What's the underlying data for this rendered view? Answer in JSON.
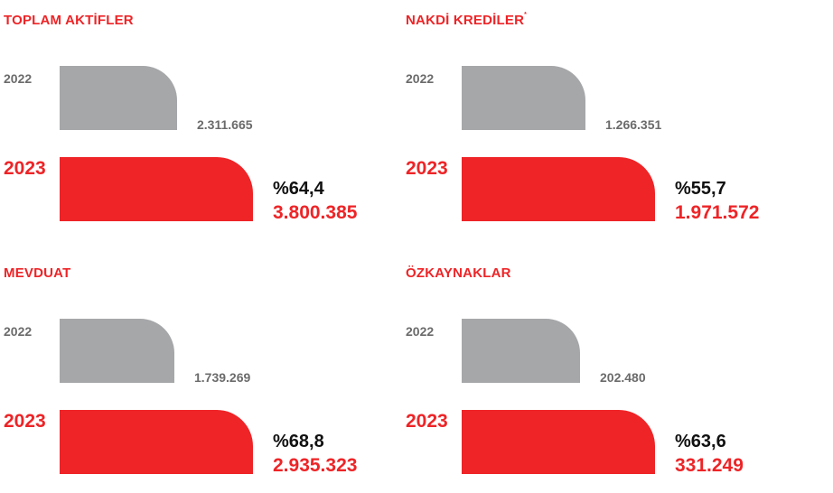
{
  "colors": {
    "accent": "#ee2427",
    "prev_bar": "#a6a7a9",
    "prev_text": "#6b6b6b",
    "pct_text": "#111111"
  },
  "chart_data": [
    {
      "type": "bar",
      "title": "TOPLAM AKTİFLER",
      "title_note": "",
      "categories": [
        "2022",
        "2023"
      ],
      "values": [
        2311665,
        3800385
      ],
      "value_labels": [
        "2.311.665",
        "3.800.385"
      ],
      "change_label": "%64,4"
    },
    {
      "type": "bar",
      "title": "NAKDİ KREDİLER",
      "title_note": "*",
      "categories": [
        "2022",
        "2023"
      ],
      "values": [
        1266351,
        1971572
      ],
      "value_labels": [
        "1.266.351",
        "1.971.572"
      ],
      "change_label": "%55,7"
    },
    {
      "type": "bar",
      "title": "MEVDUAT",
      "title_note": "",
      "categories": [
        "2022",
        "2023"
      ],
      "values": [
        1739269,
        2935323
      ],
      "value_labels": [
        "1.739.269",
        "2.935.323"
      ],
      "change_label": "%68,8"
    },
    {
      "type": "bar",
      "title": "ÖZKAYNAKLAR",
      "title_note": "",
      "categories": [
        "2022",
        "2023"
      ],
      "values": [
        202480,
        331249
      ],
      "value_labels": [
        "202.480",
        "331.249"
      ],
      "change_label": "%63,6"
    }
  ]
}
